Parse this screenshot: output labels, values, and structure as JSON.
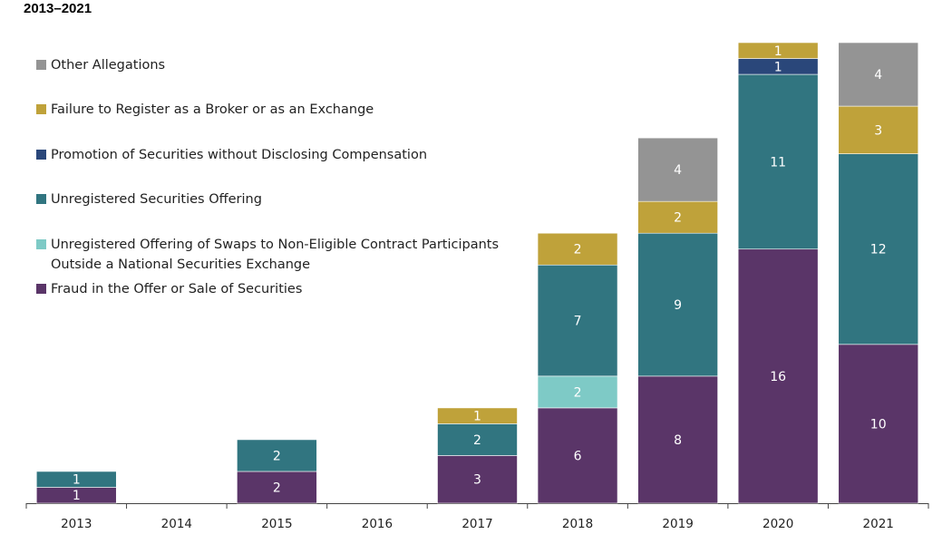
{
  "title": "2013–2021",
  "chart_data": {
    "type": "bar",
    "stacked": true,
    "categories": [
      "2013",
      "2014",
      "2015",
      "2016",
      "2017",
      "2018",
      "2019",
      "2020",
      "2021"
    ],
    "ylim": [
      0,
      29
    ],
    "grid": false,
    "legend_placement": "top-left",
    "series": [
      {
        "name": "Fraud in the Offer or Sale of Securities",
        "color": "#5a3568",
        "values": [
          1,
          0,
          2,
          0,
          3,
          6,
          8,
          16,
          10
        ]
      },
      {
        "name": "Unregistered Offering of Swaps to Non-Eligible Contract Participants Outside a National Securities Exchange",
        "name_lines": [
          "Unregistered Offering of Swaps to Non-Eligible Contract Participants",
          "Outside a National Securities Exchange"
        ],
        "color": "#7ecac6",
        "values": [
          0,
          0,
          0,
          0,
          0,
          2,
          0,
          0,
          0
        ]
      },
      {
        "name": "Unregistered Securities Offering",
        "color": "#317580",
        "values": [
          1,
          0,
          2,
          0,
          2,
          7,
          9,
          11,
          12
        ]
      },
      {
        "name": "Promotion of Securities without Disclosing Compensation",
        "color": "#2a477a",
        "values": [
          0,
          0,
          0,
          0,
          0,
          0,
          0,
          1,
          0
        ]
      },
      {
        "name": "Failure to Register as a Broker or as an Exchange",
        "color": "#bfa23a",
        "values": [
          0,
          0,
          0,
          0,
          1,
          2,
          2,
          1,
          3
        ]
      },
      {
        "name": "Other Allegations",
        "color": "#949494",
        "values": [
          0,
          0,
          0,
          0,
          0,
          0,
          4,
          0,
          4
        ]
      }
    ]
  }
}
